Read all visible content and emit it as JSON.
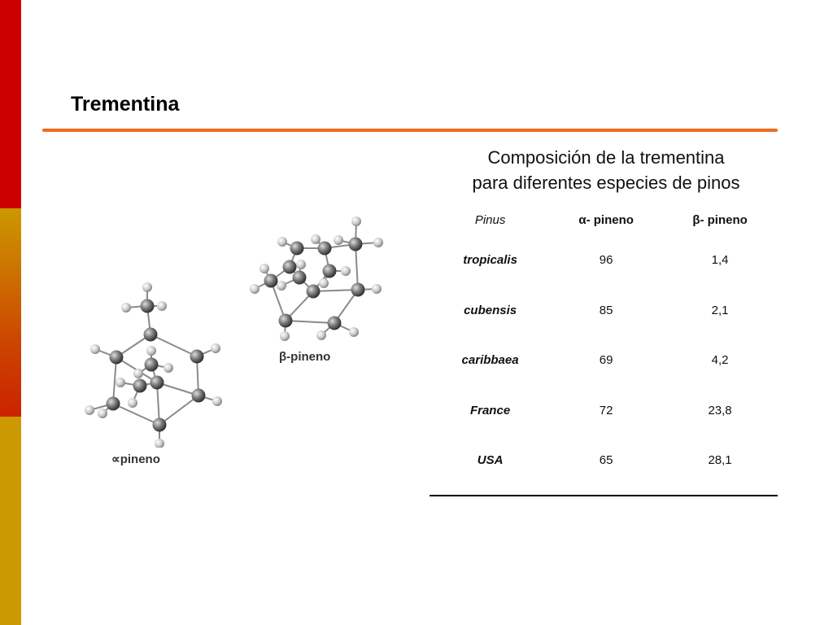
{
  "slide": {
    "title": "Trementina",
    "caption_line1": "Composición de la trementina",
    "caption_line2": "para diferentes especies de pinos"
  },
  "table": {
    "headers": [
      "Pinus",
      "α- pineno",
      "β- pineno"
    ],
    "rows": [
      {
        "species": "tropicalis",
        "alpha": "96",
        "beta": "1,4"
      },
      {
        "species": "cubensis",
        "alpha": "85",
        "beta": "2,1"
      },
      {
        "species": "caribbaea",
        "alpha": "69",
        "beta": "4,2"
      },
      {
        "species": "France",
        "alpha": "72",
        "beta": "23,8"
      },
      {
        "species": "USA",
        "alpha": "65",
        "beta": "28,1"
      }
    ]
  },
  "molecules": {
    "alpha_label": "∝pineno",
    "beta_label": "β-pineno"
  },
  "colors": {
    "bar_red": "#cc0000",
    "bar_gold": "#cc9900",
    "rule_orange": "#ee6a20"
  }
}
